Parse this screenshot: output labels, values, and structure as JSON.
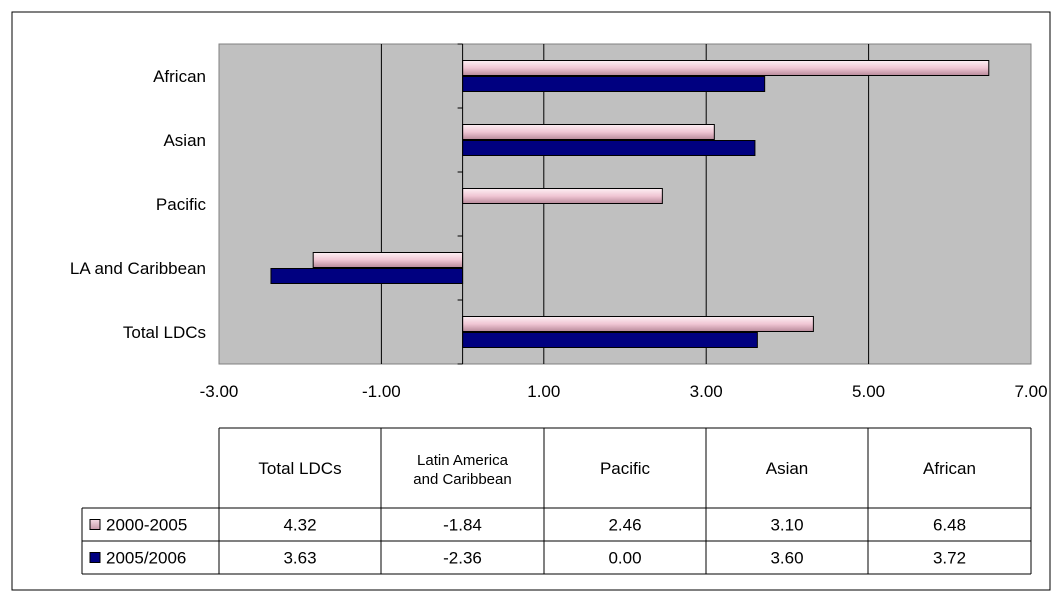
{
  "chart_data": {
    "type": "bar",
    "orientation": "horizontal",
    "title": "",
    "xlabel": "",
    "ylabel": "",
    "xlim": [
      -3.0,
      7.0
    ],
    "x_ticks": [
      -3.0,
      -1.0,
      1.0,
      3.0,
      5.0,
      7.0
    ],
    "x_tick_labels": [
      "-3.00",
      "-1.00",
      "1.00",
      "3.00",
      "5.00",
      "7.00"
    ],
    "grid": true,
    "legend": "data-table",
    "categories": [
      "African",
      "Asian",
      "Pacific",
      "LA and Caribbean",
      "Total LDCs"
    ],
    "series": [
      {
        "name": "2000-2005",
        "color": "#f2c9d6",
        "values": [
          6.48,
          3.1,
          2.46,
          -1.84,
          4.32
        ]
      },
      {
        "name": "2005/2006",
        "color": "#000080",
        "values": [
          3.72,
          3.6,
          0.0,
          -2.36,
          3.63
        ]
      }
    ],
    "data_table": {
      "columns": [
        "Total LDCs",
        "Latin America and Caribbean",
        "Pacific",
        "Asian",
        "African"
      ],
      "rows": [
        {
          "label": "2000-2005",
          "values": [
            "4.32",
            "-1.84",
            "2.46",
            "3.10",
            "6.48"
          ]
        },
        {
          "label": "2005/2006",
          "values": [
            "3.63",
            "-2.36",
            "0.00",
            "3.60",
            "3.72"
          ]
        }
      ]
    }
  }
}
